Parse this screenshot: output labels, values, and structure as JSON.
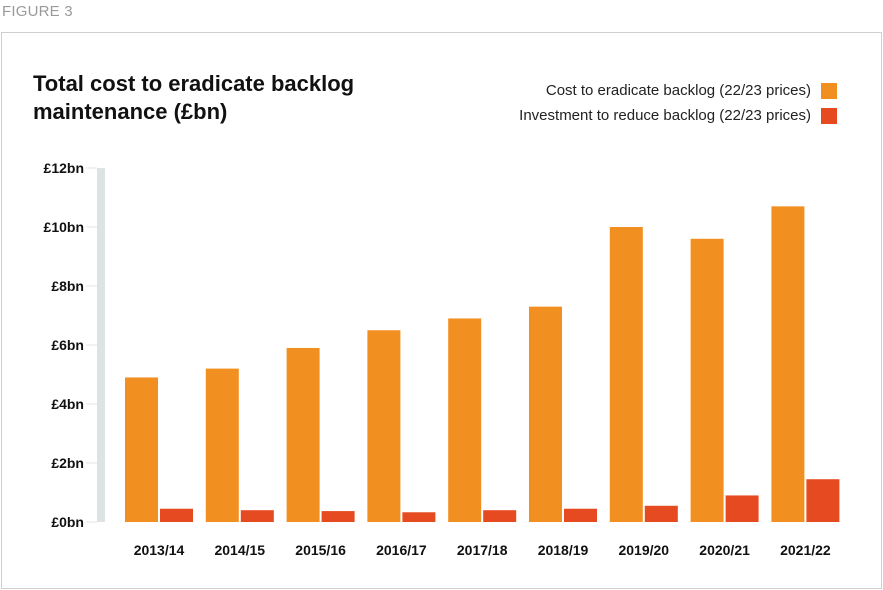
{
  "figure_label": "FIGURE 3",
  "chart_data": {
    "type": "bar",
    "title": "Total cost to eradicate backlog maintenance (£bn)",
    "title_lines": [
      "Total cost to eradicate backlog",
      "maintenance (£bn)"
    ],
    "xlabel": "",
    "ylabel": "",
    "ylim": [
      0,
      12
    ],
    "yticks": [
      0,
      2,
      4,
      6,
      8,
      10,
      12
    ],
    "ytick_labels": [
      "£0bn",
      "£2bn",
      "£4bn",
      "£6bn",
      "£8bn",
      "£10bn",
      "£12bn"
    ],
    "grid": false,
    "legend_position": "top-right",
    "categories": [
      "2013/14",
      "2014/15",
      "2015/16",
      "2016/17",
      "2017/18",
      "2018/19",
      "2019/20",
      "2020/21",
      "2021/22"
    ],
    "series": [
      {
        "name": "Cost to eradicate backlog (22/23 prices)",
        "color": "#F18F21",
        "values": [
          4.9,
          5.2,
          5.9,
          6.5,
          6.9,
          7.3,
          10.0,
          9.6,
          10.7
        ]
      },
      {
        "name": "Investment to reduce backlog (22/23 prices)",
        "color": "#E64A21",
        "values": [
          0.45,
          0.4,
          0.37,
          0.33,
          0.4,
          0.45,
          0.55,
          0.9,
          1.45
        ]
      }
    ]
  }
}
